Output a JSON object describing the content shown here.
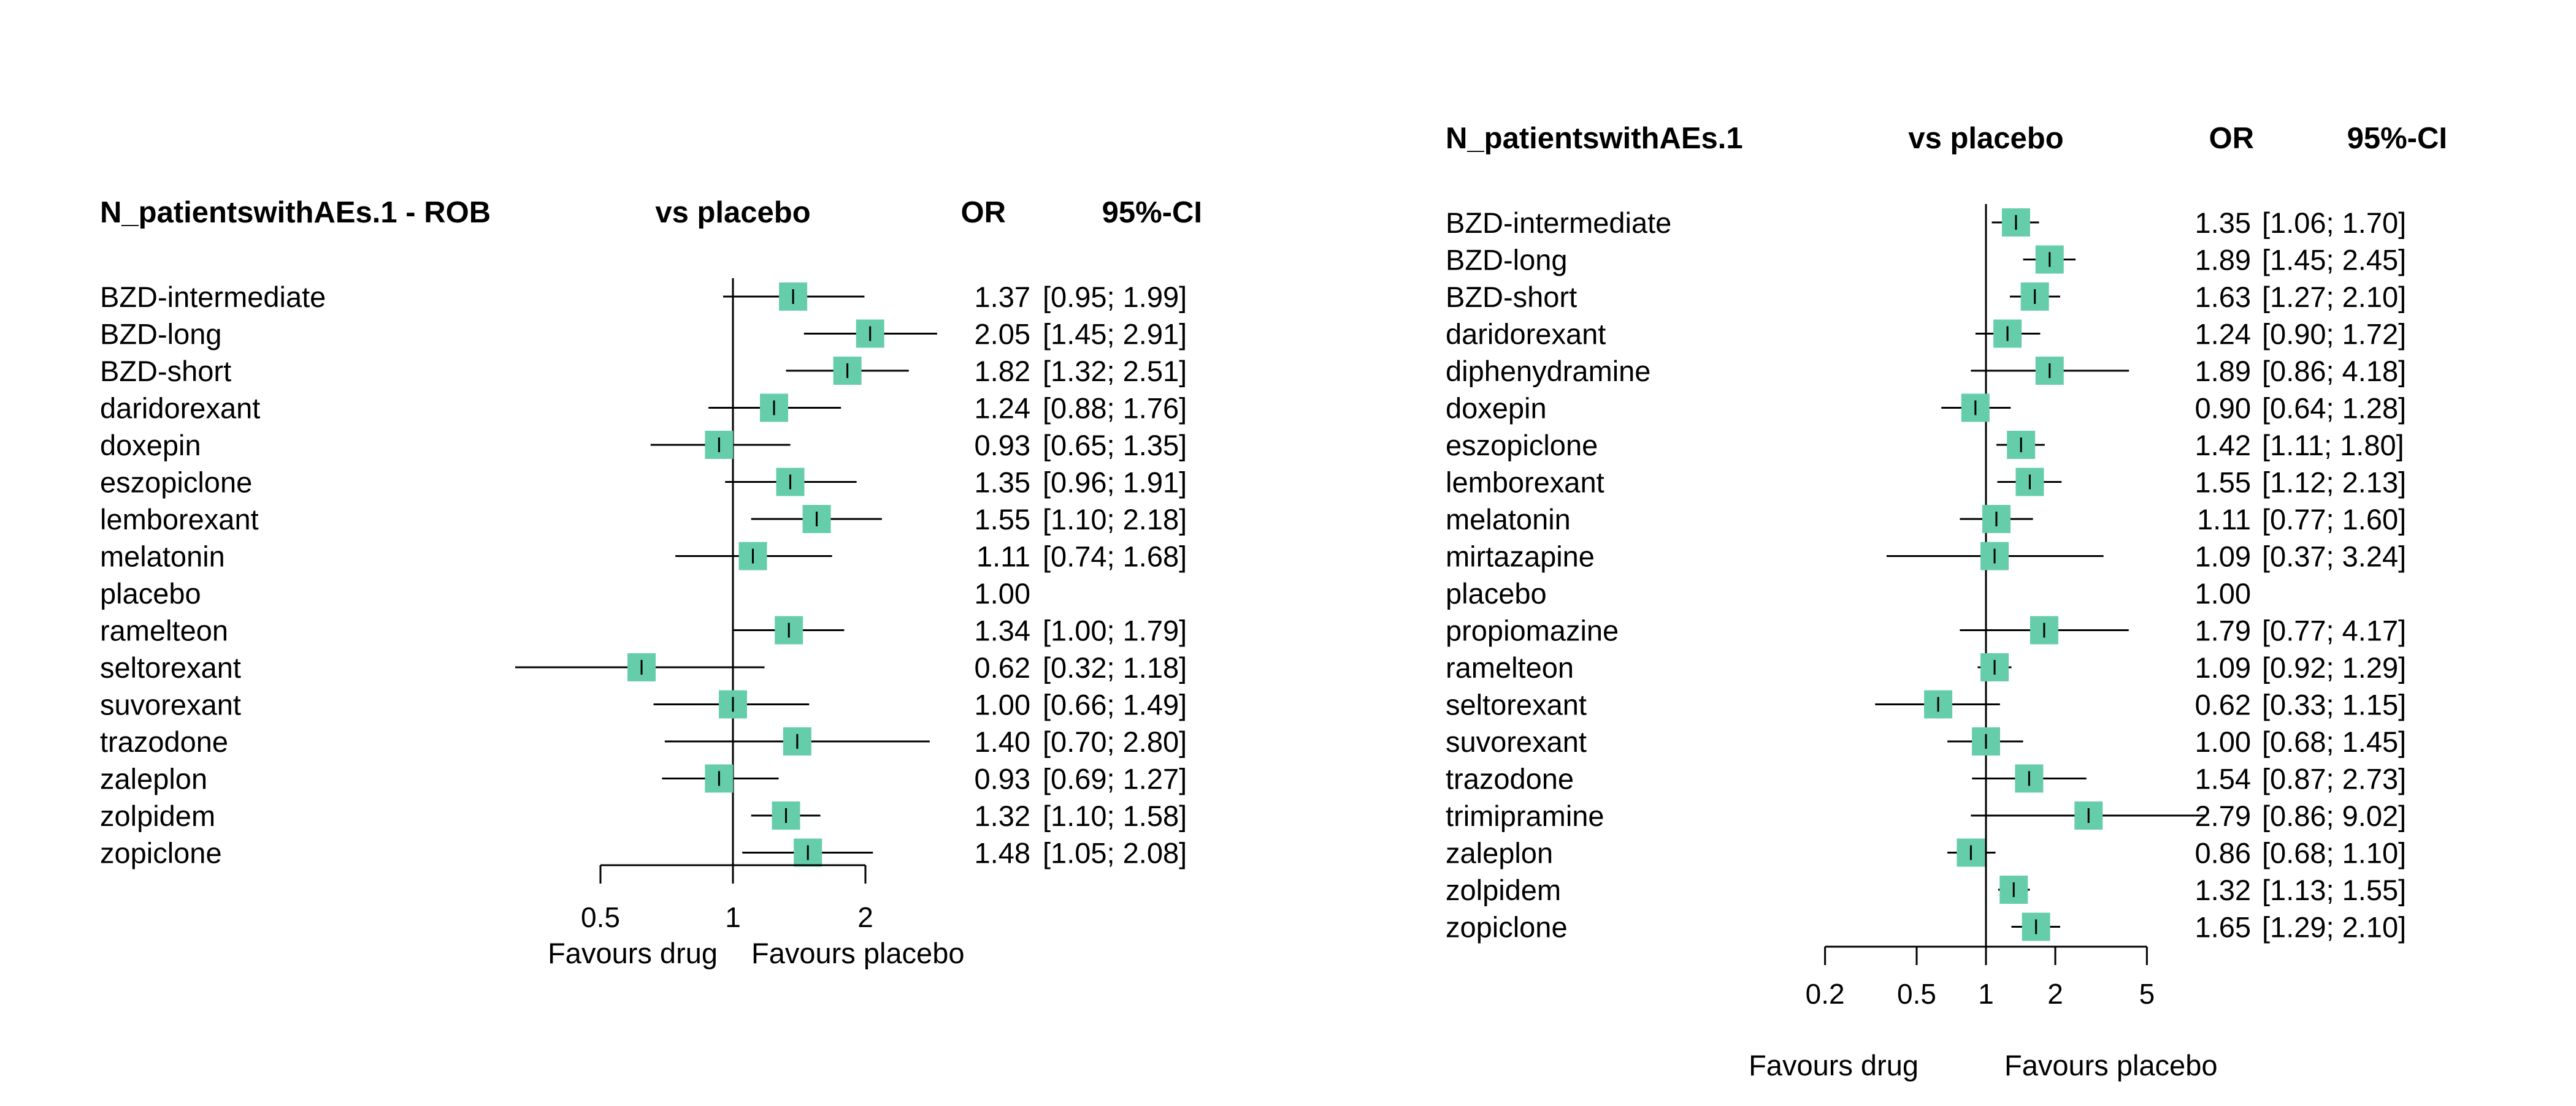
{
  "chart_data": [
    {
      "type": "forest",
      "header": {
        "title": "N_patientswithAEs.1 - ROB",
        "effect": "vs placebo",
        "or": "OR",
        "ci": "95%-CI"
      },
      "scale": "log",
      "reference_line": 1,
      "xlim": [
        0.5,
        2
      ],
      "ticks": [
        "0.5",
        "1",
        "2"
      ],
      "tick_values": [
        0.5,
        1,
        2
      ],
      "favours": {
        "left": "Favours drug",
        "right": "Favours placebo"
      },
      "marker_color": "#66cdaa",
      "rows": [
        {
          "label": "BZD-intermediate",
          "or": 1.37,
          "lo": 0.95,
          "hi": 1.99,
          "or_text": "1.37",
          "ci_text": "[0.95; 1.99]"
        },
        {
          "label": "BZD-long",
          "or": 2.05,
          "lo": 1.45,
          "hi": 2.91,
          "or_text": "2.05",
          "ci_text": "[1.45; 2.91]"
        },
        {
          "label": "BZD-short",
          "or": 1.82,
          "lo": 1.32,
          "hi": 2.51,
          "or_text": "1.82",
          "ci_text": "[1.32; 2.51]"
        },
        {
          "label": "daridorexant",
          "or": 1.24,
          "lo": 0.88,
          "hi": 1.76,
          "or_text": "1.24",
          "ci_text": "[0.88; 1.76]"
        },
        {
          "label": "doxepin",
          "or": 0.93,
          "lo": 0.65,
          "hi": 1.35,
          "or_text": "0.93",
          "ci_text": "[0.65; 1.35]"
        },
        {
          "label": "eszopiclone",
          "or": 1.35,
          "lo": 0.96,
          "hi": 1.91,
          "or_text": "1.35",
          "ci_text": "[0.96; 1.91]"
        },
        {
          "label": "lemborexant",
          "or": 1.55,
          "lo": 1.1,
          "hi": 2.18,
          "or_text": "1.55",
          "ci_text": "[1.10; 2.18]"
        },
        {
          "label": "melatonin",
          "or": 1.11,
          "lo": 0.74,
          "hi": 1.68,
          "or_text": "1.11",
          "ci_text": "[0.74; 1.68]"
        },
        {
          "label": "placebo",
          "or": null,
          "lo": null,
          "hi": null,
          "or_text": "1.00",
          "ci_text": ""
        },
        {
          "label": "ramelteon",
          "or": 1.34,
          "lo": 1.0,
          "hi": 1.79,
          "or_text": "1.34",
          "ci_text": "[1.00; 1.79]"
        },
        {
          "label": "seltorexant",
          "or": 0.62,
          "lo": 0.32,
          "hi": 1.18,
          "or_text": "0.62",
          "ci_text": "[0.32; 1.18]"
        },
        {
          "label": "suvorexant",
          "or": 1.0,
          "lo": 0.66,
          "hi": 1.49,
          "or_text": "1.00",
          "ci_text": "[0.66; 1.49]"
        },
        {
          "label": "trazodone",
          "or": 1.4,
          "lo": 0.7,
          "hi": 2.8,
          "or_text": "1.40",
          "ci_text": "[0.70; 2.80]"
        },
        {
          "label": "zaleplon",
          "or": 0.93,
          "lo": 0.69,
          "hi": 1.27,
          "or_text": "0.93",
          "ci_text": "[0.69; 1.27]"
        },
        {
          "label": "zolpidem",
          "or": 1.32,
          "lo": 1.1,
          "hi": 1.58,
          "or_text": "1.32",
          "ci_text": "[1.10; 1.58]"
        },
        {
          "label": "zopiclone",
          "or": 1.48,
          "lo": 1.05,
          "hi": 2.08,
          "or_text": "1.48",
          "ci_text": "[1.05; 2.08]"
        }
      ]
    },
    {
      "type": "forest",
      "header": {
        "title": "N_patientswithAEs.1",
        "effect": "vs placebo",
        "or": "OR",
        "ci": "95%-CI"
      },
      "scale": "log",
      "reference_line": 1,
      "xlim": [
        0.2,
        5
      ],
      "ticks": [
        "0.2",
        "0.5",
        "1",
        "2",
        "5"
      ],
      "tick_values": [
        0.2,
        0.5,
        1,
        2,
        5
      ],
      "favours": {
        "left": "Favours drug",
        "right": "Favours placebo"
      },
      "marker_color": "#66cdaa",
      "rows": [
        {
          "label": "BZD-intermediate",
          "or": 1.35,
          "lo": 1.06,
          "hi": 1.7,
          "or_text": "1.35",
          "ci_text": "[1.06; 1.70]"
        },
        {
          "label": "BZD-long",
          "or": 1.89,
          "lo": 1.45,
          "hi": 2.45,
          "or_text": "1.89",
          "ci_text": "[1.45; 2.45]"
        },
        {
          "label": "BZD-short",
          "or": 1.63,
          "lo": 1.27,
          "hi": 2.1,
          "or_text": "1.63",
          "ci_text": "[1.27; 2.10]"
        },
        {
          "label": "daridorexant",
          "or": 1.24,
          "lo": 0.9,
          "hi": 1.72,
          "or_text": "1.24",
          "ci_text": "[0.90; 1.72]"
        },
        {
          "label": "diphenydramine",
          "or": 1.89,
          "lo": 0.86,
          "hi": 4.18,
          "or_text": "1.89",
          "ci_text": "[0.86; 4.18]"
        },
        {
          "label": "doxepin",
          "or": 0.9,
          "lo": 0.64,
          "hi": 1.28,
          "or_text": "0.90",
          "ci_text": "[0.64; 1.28]"
        },
        {
          "label": "eszopiclone",
          "or": 1.42,
          "lo": 1.11,
          "hi": 1.8,
          "or_text": "1.42",
          "ci_text": "[1.11; 1.80]"
        },
        {
          "label": "lemborexant",
          "or": 1.55,
          "lo": 1.12,
          "hi": 2.13,
          "or_text": "1.55",
          "ci_text": "[1.12; 2.13]"
        },
        {
          "label": "melatonin",
          "or": 1.11,
          "lo": 0.77,
          "hi": 1.6,
          "or_text": "1.11",
          "ci_text": "[0.77; 1.60]"
        },
        {
          "label": "mirtazapine",
          "or": 1.09,
          "lo": 0.37,
          "hi": 3.24,
          "or_text": "1.09",
          "ci_text": "[0.37; 3.24]"
        },
        {
          "label": "placebo",
          "or": null,
          "lo": null,
          "hi": null,
          "or_text": "1.00",
          "ci_text": ""
        },
        {
          "label": "propiomazine",
          "or": 1.79,
          "lo": 0.77,
          "hi": 4.17,
          "or_text": "1.79",
          "ci_text": "[0.77; 4.17]"
        },
        {
          "label": "ramelteon",
          "or": 1.09,
          "lo": 0.92,
          "hi": 1.29,
          "or_text": "1.09",
          "ci_text": "[0.92; 1.29]"
        },
        {
          "label": "seltorexant",
          "or": 0.62,
          "lo": 0.33,
          "hi": 1.15,
          "or_text": "0.62",
          "ci_text": "[0.33; 1.15]"
        },
        {
          "label": "suvorexant",
          "or": 1.0,
          "lo": 0.68,
          "hi": 1.45,
          "or_text": "1.00",
          "ci_text": "[0.68; 1.45]"
        },
        {
          "label": "trazodone",
          "or": 1.54,
          "lo": 0.87,
          "hi": 2.73,
          "or_text": "1.54",
          "ci_text": "[0.87; 2.73]"
        },
        {
          "label": "trimipramine",
          "or": 2.79,
          "lo": 0.86,
          "hi": 9.02,
          "or_text": "2.79",
          "ci_text": "[0.86; 9.02]"
        },
        {
          "label": "zaleplon",
          "or": 0.86,
          "lo": 0.68,
          "hi": 1.1,
          "or_text": "0.86",
          "ci_text": "[0.68; 1.10]"
        },
        {
          "label": "zolpidem",
          "or": 1.32,
          "lo": 1.13,
          "hi": 1.55,
          "or_text": "1.32",
          "ci_text": "[1.13; 1.55]"
        },
        {
          "label": "zopiclone",
          "or": 1.65,
          "lo": 1.29,
          "hi": 2.1,
          "or_text": "1.65",
          "ci_text": "[1.29; 2.10]"
        }
      ]
    }
  ]
}
